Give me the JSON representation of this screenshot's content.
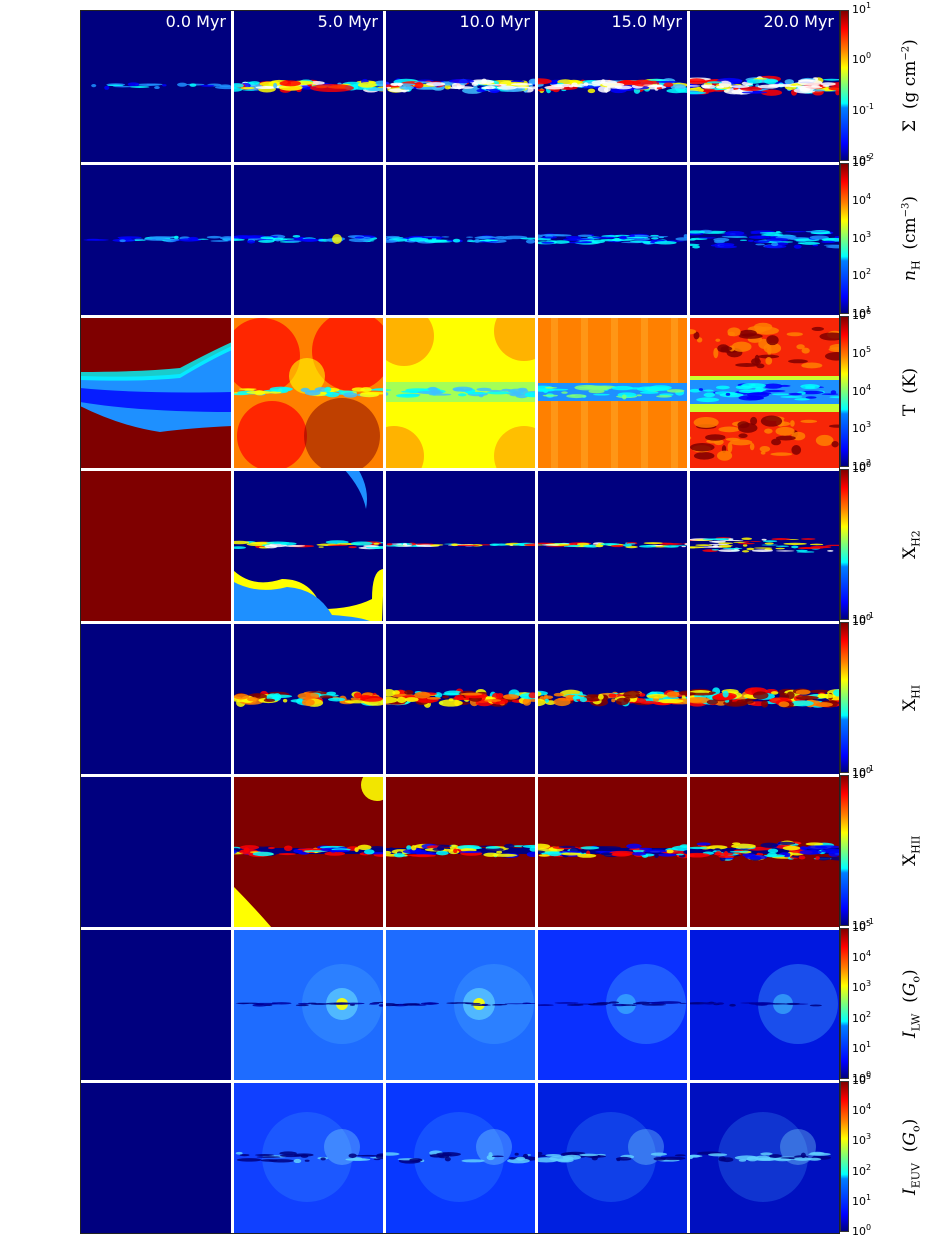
{
  "times": [
    "0.0 Myr",
    "5.0 Myr",
    "10.0 Myr",
    "15.0 Myr",
    "20.0 Myr"
  ],
  "rows": [
    {
      "quantity": "Sigma",
      "label_html": "Σ &nbsp;(g cm<sup>−2</sup>)",
      "ticks": [
        "10<sup>-2</sup>",
        "10<sup>-1</sup>",
        "10<sup>0</sup>",
        "10<sup>1</sup>"
      ]
    },
    {
      "quantity": "nH",
      "label_html": "<i>n</i><sub>H</sub> &nbsp;(cm<sup>−3</sup>)",
      "ticks": [
        "10<sup>1</sup>",
        "10<sup>2</sup>",
        "10<sup>3</sup>",
        "10<sup>4</sup>",
        "10<sup>5</sup>"
      ]
    },
    {
      "quantity": "T",
      "label_html": "T &nbsp;(K)",
      "ticks": [
        "10<sup>2</sup>",
        "10<sup>3</sup>",
        "10<sup>4</sup>",
        "10<sup>5</sup>",
        "10<sup>6</sup>"
      ]
    },
    {
      "quantity": "XH2",
      "label_html": "X<sub>H2</sub>",
      "ticks": [
        "10<sup>-1</sup>",
        "10<sup>0</sup>"
      ]
    },
    {
      "quantity": "XHI",
      "label_html": "X<sub>HI</sub>",
      "ticks": [
        "10<sup>-1</sup>",
        "10<sup>0</sup>"
      ]
    },
    {
      "quantity": "XHII",
      "label_html": "X<sub>HII</sub>",
      "ticks": [
        "10<sup>-1</sup>",
        "10<sup>0</sup>"
      ]
    },
    {
      "quantity": "ILW",
      "label_html": "<i>I</i><sub>LW</sub> &nbsp;(<i>G</i><sub>o</sub>)",
      "ticks": [
        "10<sup>0</sup>",
        "10<sup>1</sup>",
        "10<sup>2</sup>",
        "10<sup>3</sup>",
        "10<sup>4</sup>",
        "10<sup>5</sup>"
      ]
    },
    {
      "quantity": "IEUV",
      "label_html": "<i>I</i><sub>EUV</sub> &nbsp;(<i>G</i><sub>o</sub>)",
      "ticks": [
        "10<sup>0</sup>",
        "10<sup>1</sup>",
        "10<sup>2</sup>",
        "10<sup>3</sup>",
        "10<sup>4</sup>",
        "10<sup>5</sup>"
      ]
    }
  ],
  "colormap": "jet",
  "colors": {
    "darkblue": "#00007f",
    "blue": "#0000ff",
    "cyan": "#00ffff",
    "yellow": "#ffff00",
    "orange": "#ff8000",
    "red": "#ff0000",
    "darkred": "#7f0000"
  }
}
